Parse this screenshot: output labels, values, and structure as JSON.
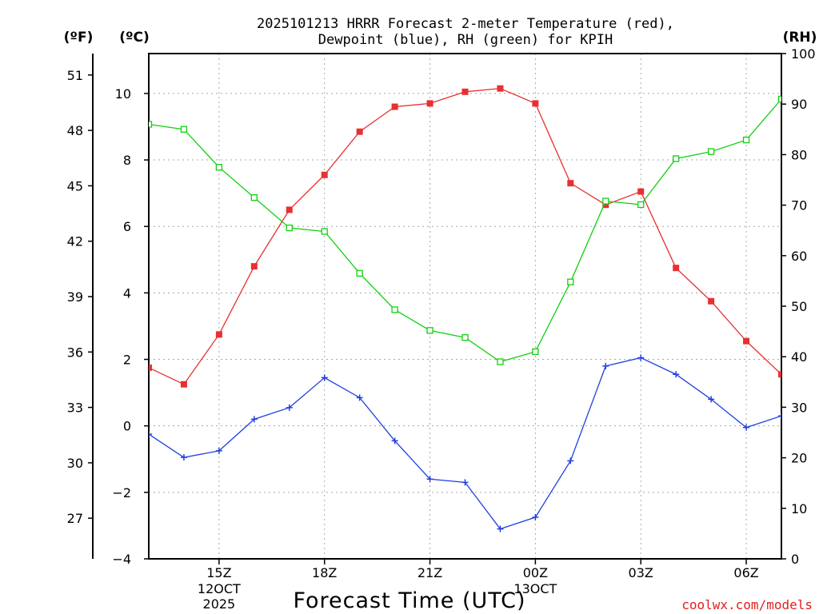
{
  "chart_data": {
    "type": "line",
    "title": [
      "2025101213 HRRR Forecast 2-meter Temperature (red),",
      "Dewpoint (blue), RH (green) for KPIH"
    ],
    "xlabel": "Forecast Time (UTC)",
    "left_unit_f": "(ºF)",
    "left_unit_c": "(ºC)",
    "right_unit": "(RH)",
    "credit": "coolwx.com/models",
    "x_hours": [
      13,
      14,
      15,
      16,
      17,
      18,
      19,
      20,
      21,
      22,
      23,
      24,
      25,
      26,
      27,
      28,
      29,
      30,
      31
    ],
    "x_range": [
      13,
      31
    ],
    "x_ticks": [
      {
        "hour": 15,
        "label": "15Z",
        "sub": [
          "12OCT",
          "2025"
        ]
      },
      {
        "hour": 18,
        "label": "18Z",
        "sub": []
      },
      {
        "hour": 21,
        "label": "21Z",
        "sub": []
      },
      {
        "hour": 24,
        "label": "00Z",
        "sub": [
          "13OCT"
        ]
      },
      {
        "hour": 27,
        "label": "03Z",
        "sub": []
      },
      {
        "hour": 30,
        "label": "06Z",
        "sub": []
      }
    ],
    "celsius_range": [
      -4,
      11.2
    ],
    "celsius_ticks": [
      -4,
      -2,
      0,
      2,
      4,
      6,
      8,
      10
    ],
    "celsius_tick_labels": [
      "−4",
      "−2",
      "0",
      "2",
      "4",
      "6",
      "8",
      "10"
    ],
    "fahrenheit_ticks": [
      27,
      30,
      33,
      36,
      39,
      42,
      45,
      48,
      51
    ],
    "fahrenheit_tick_labels": [
      "27",
      "30",
      "33",
      "36",
      "39",
      "42",
      "45",
      "48",
      "51"
    ],
    "rh_range": [
      0,
      100
    ],
    "rh_ticks": [
      0,
      10,
      20,
      30,
      40,
      50,
      60,
      70,
      80,
      90,
      100
    ],
    "rh_tick_labels": [
      "0",
      "10",
      "20",
      "30",
      "40",
      "50",
      "60",
      "70",
      "80",
      "90",
      "100"
    ],
    "series": [
      {
        "name": "2-meter Temperature",
        "axis": "celsius",
        "color": "#e83030",
        "marker": "filled-square",
        "values": [
          1.75,
          1.25,
          2.75,
          4.8,
          6.5,
          7.55,
          8.85,
          9.6,
          9.7,
          10.05,
          10.15,
          9.7,
          7.3,
          6.65,
          7.05,
          4.75,
          3.75,
          2.55,
          1.55
        ]
      },
      {
        "name": "Dewpoint",
        "axis": "celsius",
        "color": "#2040e0",
        "marker": "plus",
        "values": [
          -0.25,
          -0.95,
          -0.75,
          0.2,
          0.55,
          1.45,
          0.85,
          -0.45,
          -1.6,
          -1.7,
          -3.1,
          -2.75,
          -1.05,
          1.8,
          2.05,
          1.55,
          0.8,
          -0.05,
          0.3
        ]
      },
      {
        "name": "RH",
        "axis": "rh",
        "color": "#10d010",
        "marker": "open-square",
        "values": [
          86,
          85,
          77.5,
          71.5,
          65.5,
          64.8,
          56.5,
          49.3,
          45.2,
          43.8,
          39,
          41,
          54.8,
          70.8,
          70.1,
          79.2,
          80.6,
          82.9,
          91
        ]
      }
    ]
  }
}
